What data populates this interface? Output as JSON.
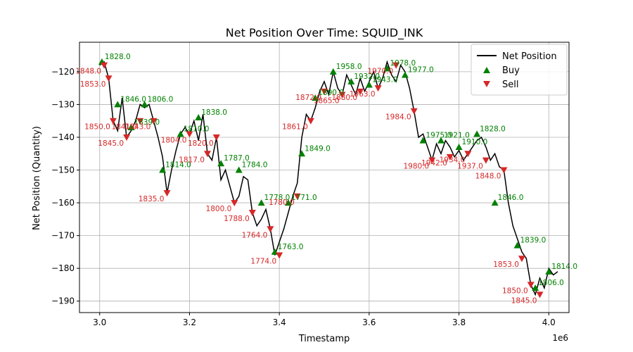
{
  "chart_data": {
    "type": "line",
    "title": "Net Position Over Time: SQUID_INK",
    "xlabel": "Timestamp",
    "ylabel": "Net Position (Quantity)",
    "x_offset_label": "1e6",
    "xlim": [
      2.955,
      4.045
    ],
    "ylim": [
      -193.5,
      -111.0
    ],
    "x_ticks": [
      3.0,
      3.2,
      3.4,
      3.6,
      3.8,
      4.0
    ],
    "x_tick_labels": [
      "3.0",
      "3.2",
      "3.4",
      "3.6",
      "3.8",
      "4.0"
    ],
    "y_ticks": [
      -190,
      -180,
      -170,
      -160,
      -150,
      -140,
      -130,
      -120
    ],
    "y_tick_labels": [
      "−190",
      "−180",
      "−170",
      "−160",
      "−150",
      "−140",
      "−130",
      "−120"
    ],
    "grid": true,
    "legend_position": "upper right",
    "colors": {
      "line": "#000000",
      "buy": "#008000",
      "sell": "#d62728",
      "grid": "#b0b0b0"
    },
    "series": [
      {
        "name": "Net Position",
        "x": [
          3.0,
          3.01,
          3.02,
          3.03,
          3.04,
          3.05,
          3.06,
          3.07,
          3.08,
          3.09,
          3.1,
          3.11,
          3.12,
          3.13,
          3.14,
          3.15,
          3.16,
          3.17,
          3.18,
          3.19,
          3.2,
          3.21,
          3.22,
          3.23,
          3.24,
          3.25,
          3.26,
          3.27,
          3.28,
          3.29,
          3.3,
          3.31,
          3.32,
          3.33,
          3.34,
          3.35,
          3.36,
          3.37,
          3.38,
          3.39,
          3.4,
          3.41,
          3.42,
          3.43,
          3.44,
          3.45,
          3.46,
          3.47,
          3.48,
          3.49,
          3.5,
          3.51,
          3.52,
          3.53,
          3.54,
          3.55,
          3.56,
          3.57,
          3.58,
          3.59,
          3.6,
          3.61,
          3.62,
          3.63,
          3.64,
          3.65,
          3.66,
          3.67,
          3.68,
          3.69,
          3.7,
          3.71,
          3.72,
          3.73,
          3.74,
          3.75,
          3.76,
          3.77,
          3.78,
          3.79,
          3.8,
          3.81,
          3.82,
          3.83,
          3.84,
          3.85,
          3.86,
          3.87,
          3.88,
          3.89,
          3.9,
          3.91,
          3.92,
          3.93,
          3.94,
          3.95,
          3.96,
          3.97,
          3.98,
          3.99,
          4.0,
          4.01,
          4.02
        ],
        "y": [
          -118,
          -117,
          -122,
          -135,
          -138,
          -128,
          -140,
          -138,
          -135,
          -130,
          -131,
          -130,
          -135,
          -140,
          -146,
          -157,
          -150,
          -144,
          -139,
          -137,
          -139,
          -135,
          -141,
          -133,
          -145,
          -147,
          -140,
          -153,
          -150,
          -155,
          -160,
          -158,
          -152,
          -153,
          -163,
          -167,
          -165,
          -162,
          -168,
          -176,
          -172,
          -168,
          -163,
          -158,
          -154,
          -140,
          -133,
          -135,
          -131,
          -126,
          -123,
          -127,
          -120,
          -125,
          -127,
          -121,
          -124,
          -127,
          -122,
          -126,
          -123,
          -120,
          -125,
          -122,
          -117,
          -121,
          -123,
          -118,
          -120,
          -125,
          -132,
          -140,
          -139,
          -143,
          -147,
          -142,
          -145,
          -141,
          -143,
          -146,
          -144,
          -147,
          -145,
          -143,
          -141,
          -140,
          -143,
          -147,
          -145,
          -149,
          -150,
          -160,
          -167,
          -171,
          -175,
          -177,
          -185,
          -188,
          -183,
          -186,
          -180,
          -182,
          -181
        ]
      },
      {
        "name": "Buy",
        "x": [
          3.005,
          3.04,
          3.07,
          3.1,
          3.14,
          3.18,
          3.22,
          3.27,
          3.31,
          3.36,
          3.39,
          3.42,
          3.45,
          3.48,
          3.52,
          3.56,
          3.6,
          3.64,
          3.68,
          3.72,
          3.76,
          3.8,
          3.84,
          3.88,
          3.93,
          3.97,
          4.0
        ],
        "y": [
          -117,
          -130,
          -137,
          -130,
          -150,
          -139,
          -134,
          -148,
          -150,
          -160,
          -175,
          -160,
          -145,
          -128,
          -120,
          -123,
          -124,
          -119,
          -121,
          -141,
          -141,
          -143,
          -139,
          -160,
          -173,
          -186,
          -181
        ]
      },
      {
        "name": "Sell",
        "x": [
          3.01,
          3.02,
          3.03,
          3.06,
          3.09,
          3.12,
          3.15,
          3.2,
          3.24,
          3.26,
          3.3,
          3.34,
          3.38,
          3.4,
          3.44,
          3.47,
          3.5,
          3.54,
          3.58,
          3.62,
          3.66,
          3.7,
          3.74,
          3.78,
          3.82,
          3.86,
          3.9,
          3.94,
          3.96,
          3.98
        ],
        "y": [
          -118,
          -122,
          -135,
          -140,
          -135,
          -135,
          -157,
          -139,
          -145,
          -140,
          -160,
          -163,
          -168,
          -176,
          -158,
          -135,
          -126,
          -127,
          -126,
          -125,
          -118,
          -132,
          -147,
          -146,
          -145,
          -147,
          -150,
          -177,
          -185,
          -188
        ]
      }
    ],
    "annotations_buy": [
      "1828.0",
      "1846.0",
      "1839.0",
      "1806.0",
      "1814.0",
      "1810.0",
      "1838.0",
      "1787.0",
      "1784.0",
      "1778.0",
      "1763.0",
      "1771.0",
      "1849.0",
      "1890.0",
      "1958.0",
      "1932.0",
      "1943.0",
      "1978.0",
      "1977.0",
      "1975.0",
      "1921.0",
      "1910.0"
    ],
    "annotations_sell": [
      "1848.0",
      "1853.0",
      "1850.0",
      "1845.0",
      "1841.0",
      "1843.0",
      "1835.0",
      "1804.0",
      "1817.0",
      "1820.0",
      "1800.0",
      "1788.0",
      "1764.0",
      "1774.0",
      "1780.0",
      "1861.0",
      "1872.0",
      "1865.0",
      "1880.0",
      "1963.0",
      "1970.0",
      "1984.0",
      "1980.0",
      "1942.0",
      "1934.0",
      "1937.0"
    ]
  }
}
